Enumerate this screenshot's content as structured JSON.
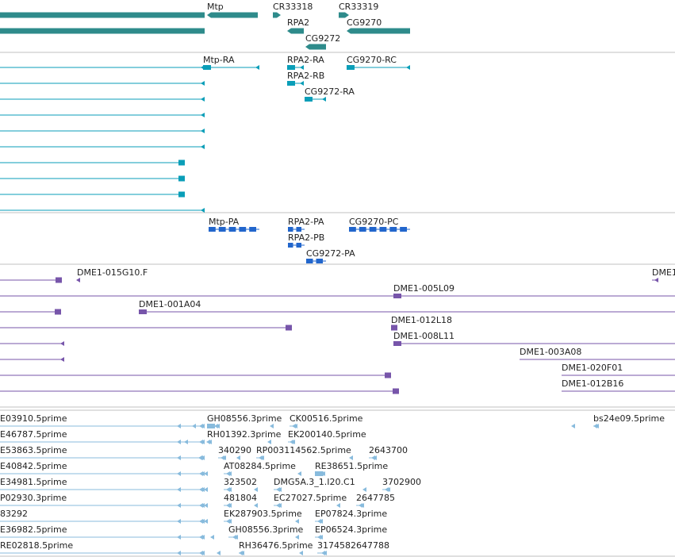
{
  "colors": {
    "gene": "#2e8b8b",
    "transcript": "#0a9eb8",
    "protein": "#2266cc",
    "cdna": "#7755aa",
    "est": "#88bbdd",
    "separator": "#c0c0c0",
    "label": "#222222"
  },
  "tracks": {
    "genes": {
      "features": [
        {
          "label": "",
          "dir": "left",
          "row": 0,
          "start": -10,
          "end": 258
        },
        {
          "label": "",
          "dir": "left",
          "row": 1,
          "start": -10,
          "end": 258
        },
        {
          "label": "Mtp",
          "dir": "left",
          "row": 0,
          "start": 261,
          "end": 325
        },
        {
          "label": "CR33318",
          "dir": "right",
          "row": 0,
          "start": 344,
          "end": 354
        },
        {
          "label": "CR33319",
          "dir": "right",
          "row": 0,
          "start": 427,
          "end": 440
        },
        {
          "label": "RPA2",
          "dir": "left",
          "row": 1,
          "start": 362,
          "end": 383
        },
        {
          "label": "CG9270",
          "dir": "left",
          "row": 1,
          "start": 437,
          "end": 517
        },
        {
          "label": "CG9272",
          "dir": "left",
          "row": 2,
          "start": 385,
          "end": 411
        }
      ]
    },
    "transcripts": {
      "features": [
        {
          "label": "",
          "dir": "left",
          "row": 0,
          "start": -10,
          "end": 258
        },
        {
          "label": "",
          "dir": "left",
          "row": 1,
          "start": -10,
          "end": 258
        },
        {
          "label": "",
          "dir": "left",
          "row": 2,
          "start": -10,
          "end": 258
        },
        {
          "label": "",
          "dir": "left",
          "row": 3,
          "start": -10,
          "end": 258
        },
        {
          "label": "",
          "dir": "left",
          "row": 4,
          "start": -10,
          "end": 258
        },
        {
          "label": "",
          "dir": "left",
          "row": 5,
          "start": -10,
          "end": 258
        },
        {
          "label": "",
          "dir": "right",
          "row": 6,
          "start": -10,
          "end": 233
        },
        {
          "label": "",
          "dir": "right",
          "row": 7,
          "start": -10,
          "end": 233
        },
        {
          "label": "",
          "dir": "right",
          "row": 8,
          "start": -10,
          "end": 233
        },
        {
          "label": "",
          "dir": "left",
          "row": 9,
          "start": -10,
          "end": 258
        },
        {
          "label": "Mtp-RA",
          "dir": "left",
          "row": 0,
          "start": 256,
          "end": 327
        },
        {
          "label": "RPA2-RA",
          "dir": "left",
          "row": 0,
          "start": 362,
          "end": 383
        },
        {
          "label": "CG9270-RC",
          "dir": "left",
          "row": 0,
          "start": 437,
          "end": 517
        },
        {
          "label": "RPA2-RB",
          "dir": "left",
          "row": 1,
          "start": 362,
          "end": 383
        },
        {
          "label": "CG9272-RA",
          "dir": "left",
          "row": 2,
          "start": 384,
          "end": 411
        }
      ]
    },
    "proteins": {
      "features": [
        {
          "label": "Mtp-PA",
          "dir": "left",
          "row": 0,
          "start": 263,
          "end": 327
        },
        {
          "label": "RPA2-PA",
          "dir": "left",
          "row": 0,
          "start": 363,
          "end": 384
        },
        {
          "label": "CG9270-PC",
          "dir": "left",
          "row": 0,
          "start": 440,
          "end": 517
        },
        {
          "label": "RPA2-PB",
          "dir": "left",
          "row": 1,
          "start": 363,
          "end": 384
        },
        {
          "label": "CG9272-PA",
          "dir": "left",
          "row": 2,
          "start": 386,
          "end": 411
        }
      ]
    },
    "cdna": {
      "features": [
        {
          "label": "",
          "dir": "right",
          "row": 0,
          "start": -10,
          "end": 78
        },
        {
          "label": "DME1-015G10.F",
          "dir": "left",
          "row": 0,
          "start": 97,
          "end": 101
        },
        {
          "label": "DME1",
          "dir": "left",
          "row": 0,
          "start": 822,
          "end": 830
        },
        {
          "label": "DME1-005L09",
          "dir": "left",
          "row": 1,
          "start": 496,
          "end": 861
        },
        {
          "label": "",
          "dir": "right",
          "row": 1,
          "start": -10,
          "end": 861
        },
        {
          "label": "",
          "dir": "right",
          "row": 2,
          "start": -10,
          "end": 77
        },
        {
          "label": "DME1-001A04",
          "dir": "left",
          "row": 2,
          "start": 175,
          "end": 861
        },
        {
          "label": "",
          "dir": "right",
          "row": 3,
          "start": -10,
          "end": 368
        },
        {
          "label": "DME1-012L18",
          "dir": "right",
          "row": 3,
          "start": 493,
          "end": 501
        },
        {
          "label": "",
          "dir": "left",
          "row": 4,
          "start": -10,
          "end": 81
        },
        {
          "label": "DME1-008L11",
          "dir": "left",
          "row": 4,
          "start": 496,
          "end": 861
        },
        {
          "label": "",
          "dir": "left",
          "row": 5,
          "start": -10,
          "end": 81
        },
        {
          "label": "DME1-003A08",
          "dir": "right",
          "row": 5,
          "start": 655,
          "end": 861
        },
        {
          "label": "",
          "dir": "right",
          "row": 6,
          "start": -10,
          "end": 493
        },
        {
          "label": "DME1-020F01",
          "dir": "right",
          "row": 6,
          "start": 708,
          "end": 861
        },
        {
          "label": "",
          "dir": "right",
          "row": 7,
          "start": -10,
          "end": 503
        },
        {
          "label": "DME1-012B16",
          "dir": "right",
          "row": 7,
          "start": 708,
          "end": 861
        }
      ]
    },
    "ests": {
      "features": [
        {
          "label": "E03910.5prime",
          "dir": "left",
          "row": 0,
          "start": -10,
          "end": 258
        },
        {
          "label": "GH08556.3prime",
          "dir": "left",
          "row": 0,
          "start": 261,
          "end": 277
        },
        {
          "label": "CK00516.5prime",
          "dir": "left",
          "row": 0,
          "start": 365,
          "end": 375
        },
        {
          "label": "bs24e09.5prime",
          "dir": "left",
          "row": 0,
          "start": 748,
          "end": 755
        },
        {
          "label": "E46787.5prime",
          "dir": "left",
          "row": 1,
          "start": -10,
          "end": 258
        },
        {
          "label": "RH01392.3prime",
          "dir": "left",
          "row": 1,
          "start": 261,
          "end": 267
        },
        {
          "label": "EK200140.5prime",
          "dir": "left",
          "row": 1,
          "start": 363,
          "end": 372
        },
        {
          "label": "E53863.5prime",
          "dir": "left",
          "row": 2,
          "start": -10,
          "end": 258
        },
        {
          "label": "340290",
          "dir": "left",
          "row": 2,
          "start": 275,
          "end": 285
        },
        {
          "label": "RP003114562.5prime",
          "dir": "left",
          "row": 2,
          "start": 323,
          "end": 333
        },
        {
          "label": "2643700",
          "dir": "left",
          "row": 2,
          "start": 465,
          "end": 475
        },
        {
          "label": "E40842.5prime",
          "dir": "left",
          "row": 3,
          "start": -10,
          "end": 258
        },
        {
          "label": "AT08284.5prime",
          "dir": "left",
          "row": 3,
          "start": 282,
          "end": 292
        },
        {
          "label": "RE38651.5prime",
          "dir": "left",
          "row": 3,
          "start": 397,
          "end": 410
        },
        {
          "label": "E34981.5prime",
          "dir": "left",
          "row": 4,
          "start": -10,
          "end": 258
        },
        {
          "label": "323502",
          "dir": "left",
          "row": 4,
          "start": 282,
          "end": 292
        },
        {
          "label": "DMG5A.3_1.I20.C1",
          "dir": "left",
          "row": 4,
          "start": 345,
          "end": 355
        },
        {
          "label": "3702900",
          "dir": "left",
          "row": 4,
          "start": 482,
          "end": 492
        },
        {
          "label": "P02930.3prime",
          "dir": "left",
          "row": 5,
          "start": -10,
          "end": 258
        },
        {
          "label": "481804",
          "dir": "left",
          "row": 5,
          "start": 282,
          "end": 292
        },
        {
          "label": "EC27027.5prime",
          "dir": "left",
          "row": 5,
          "start": 345,
          "end": 355
        },
        {
          "label": "2647785",
          "dir": "left",
          "row": 5,
          "start": 449,
          "end": 459
        },
        {
          "label": "83292",
          "dir": "left",
          "row": 6,
          "start": -10,
          "end": 258
        },
        {
          "label": "EK287903.5prime",
          "dir": "left",
          "row": 6,
          "start": 282,
          "end": 292
        },
        {
          "label": "EP07824.3prime",
          "dir": "left",
          "row": 6,
          "start": 397,
          "end": 407
        },
        {
          "label": "E36982.5prime",
          "dir": "left",
          "row": 7,
          "start": -10,
          "end": 258
        },
        {
          "label": "GH08556.3prime",
          "dir": "left",
          "row": 7,
          "start": 288,
          "end": 300
        },
        {
          "label": "EP06524.3prime",
          "dir": "left",
          "row": 7,
          "start": 397,
          "end": 407
        },
        {
          "label": "RE02818.5prime",
          "dir": "left",
          "row": 8,
          "start": -10,
          "end": 258
        },
        {
          "label": "RH36476.5prime",
          "dir": "left",
          "row": 8,
          "start": 301,
          "end": 308
        },
        {
          "label": "3174582647788",
          "dir": "left",
          "row": 8,
          "start": 400,
          "end": 412
        }
      ]
    }
  }
}
